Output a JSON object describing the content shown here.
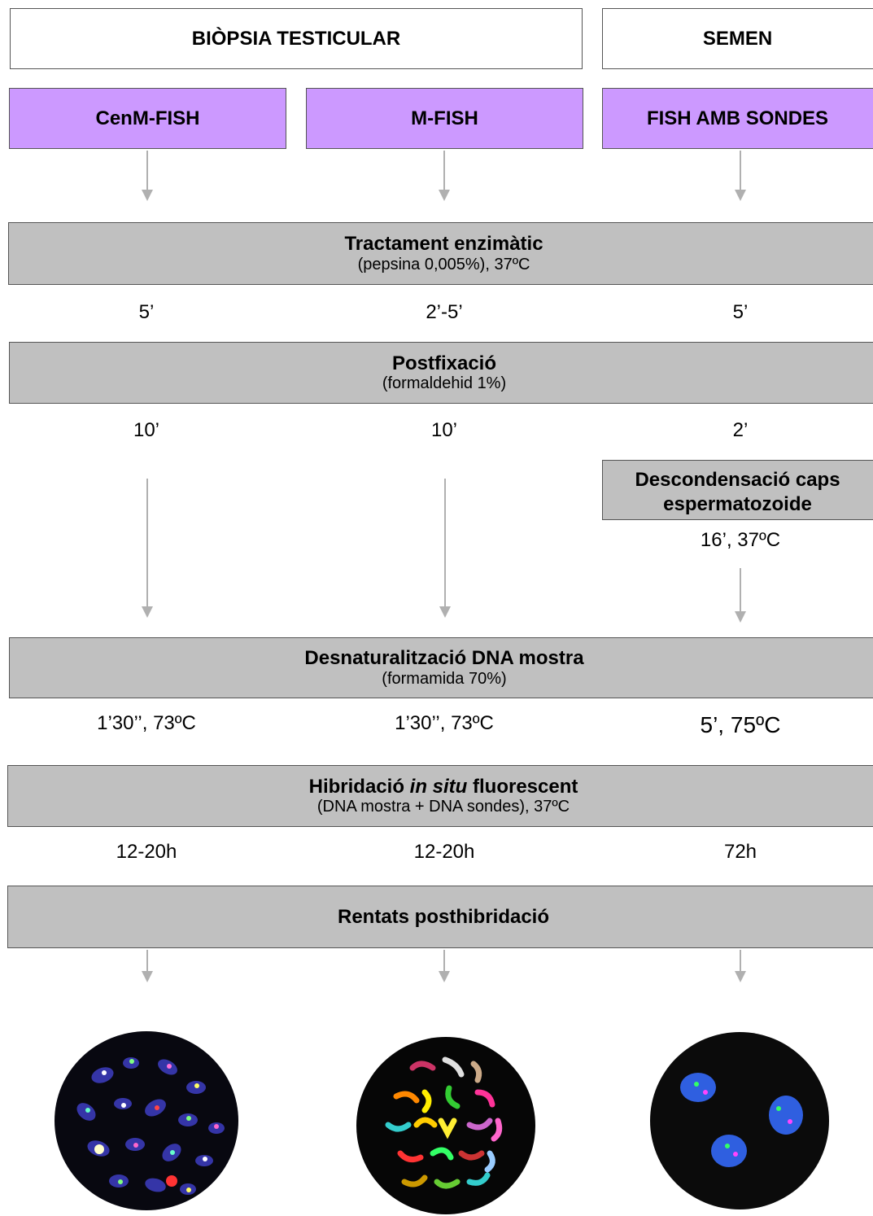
{
  "headers": {
    "biopsia": "BIÒPSIA TESTICULAR",
    "semen": "SEMEN"
  },
  "techniques": [
    "CenM-FISH",
    "M-FISH",
    "FISH AMB SONDES"
  ],
  "steps": {
    "tractament": {
      "title": "Tractament enzimàtic",
      "sub": "(pepsina 0,005%), 37ºC",
      "times": [
        "5’",
        "2’-5’",
        "5’"
      ]
    },
    "postfixacio": {
      "title": "Postfixació",
      "sub": "(formaldehid 1%)",
      "times": [
        "10’",
        "10’",
        "2’"
      ]
    },
    "descondensacio": {
      "title": "Descondensació caps espermatozoide",
      "time": "16’, 37ºC"
    },
    "desnaturalitzacio": {
      "title": "Desnaturalització DNA mostra",
      "sub": "(formamida 70%)",
      "times": [
        "1’30’’, 73ºC",
        "1’30’’, 73ºC",
        "5’, 75ºC"
      ]
    },
    "hibridacio": {
      "title_pre": "Hibridació ",
      "title_italic": "in situ",
      "title_post": " fluorescent",
      "sub": "(DNA mostra + DNA sondes), 37ºC",
      "times": [
        "12-20h",
        "12-20h",
        "72h"
      ]
    },
    "rentats": {
      "title": "Rentats posthibridació"
    }
  },
  "colors": {
    "technique_fill": "#cc99ff",
    "step_fill": "#c0c0c0",
    "arrow": "#b0b0b0"
  },
  "images": [
    "cenm-fish-metaphase",
    "m-fish-metaphase",
    "sperm-fish-nuclei"
  ]
}
